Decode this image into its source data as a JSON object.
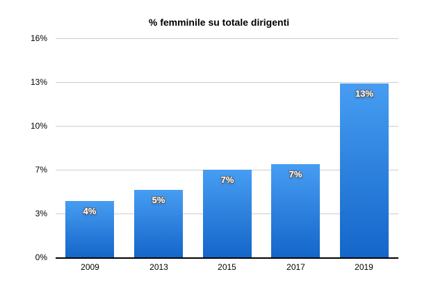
{
  "chart_data": {
    "type": "bar",
    "title": "% femminile su totale dirigenti",
    "categories": [
      "2009",
      "2013",
      "2015",
      "2017",
      "2019"
    ],
    "values": [
      4.2,
      5.0,
      6.5,
      6.9,
      12.9
    ],
    "bar_labels": [
      "4%",
      "5%",
      "7%",
      "7%",
      "13%"
    ],
    "y_ticks": [
      {
        "value": 0,
        "label": "0%"
      },
      {
        "value": 3.25,
        "label": "3%"
      },
      {
        "value": 6.5,
        "label": "7%"
      },
      {
        "value": 9.75,
        "label": "10%"
      },
      {
        "value": 13,
        "label": "13%"
      },
      {
        "value": 16.25,
        "label": "16%"
      }
    ],
    "ylim": [
      0,
      16.25
    ],
    "xlabel": "",
    "ylabel": "",
    "legend": "none",
    "grid": true,
    "colors": {
      "bar_top": "#479df2",
      "bar_bottom": "#1466c9",
      "gridline": "#cccccc",
      "axis_line": "#000000",
      "bar_label_text": "#ffffff",
      "bar_label_outline": "#5f6368",
      "tick_text": "#000000",
      "title_text": "#000000",
      "background": "#ffffff"
    }
  }
}
